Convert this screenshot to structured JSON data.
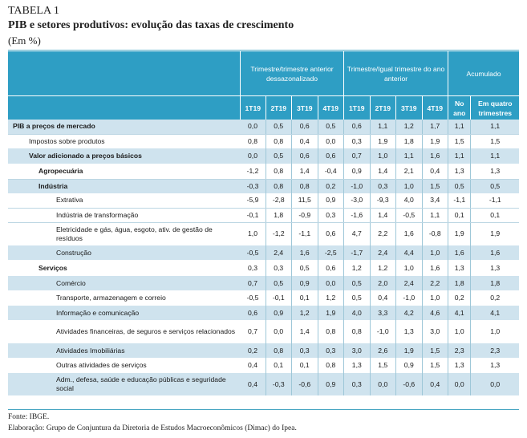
{
  "caption": {
    "label": "TABELA 1",
    "title": "PIB e setores produtivos: evolução das taxas de crescimento",
    "unit": "(Em %)"
  },
  "header": {
    "group1": "Trimestre/trimestre anterior dessazonalizado",
    "group2": "Trimestre/Igual trimestre do ano anterior",
    "group3": "Acumulado",
    "cols": [
      "1T19",
      "2T19",
      "3T19",
      "4T19",
      "1T19",
      "2T19",
      "3T19",
      "4T19",
      "No ano",
      "Em quatro trimestres"
    ]
  },
  "rows": [
    {
      "label": "PIB a preços de mercado",
      "values": [
        "0,0",
        "0,5",
        "0,6",
        "0,5",
        "0,6",
        "1,1",
        "1,2",
        "1,7",
        "1,1",
        "1,1"
      ]
    },
    {
      "label": "Impostos sobre produtos",
      "values": [
        "0,8",
        "0,8",
        "0,4",
        "0,0",
        "0,3",
        "1,9",
        "1,8",
        "1,9",
        "1,5",
        "1,5"
      ]
    },
    {
      "label": "Valor adicionado  a preços básicos",
      "values": [
        "0,0",
        "0,5",
        "0,6",
        "0,6",
        "0,7",
        "1,0",
        "1,1",
        "1,6",
        "1,1",
        "1,1"
      ]
    },
    {
      "label": "Agropecuária",
      "values": [
        "-1,2",
        "0,8",
        "1,4",
        "-0,4",
        "0,9",
        "1,4",
        "2,1",
        "0,4",
        "1,3",
        "1,3"
      ]
    },
    {
      "label": "Indústria",
      "values": [
        "-0,3",
        "0,8",
        "0,8",
        "0,2",
        "-1,0",
        "0,3",
        "1,0",
        "1,5",
        "0,5",
        "0,5"
      ]
    },
    {
      "label": "Extrativa",
      "values": [
        "-5,9",
        "-2,8",
        "11,5",
        "0,9",
        "-3,0",
        "-9,3",
        "4,0",
        "3,4",
        "-1,1",
        "-1,1"
      ]
    },
    {
      "label": "Indústria de transformação",
      "values": [
        "-0,1",
        "1,8",
        "-0,9",
        "0,3",
        "-1,6",
        "1,4",
        "-0,5",
        "1,1",
        "0,1",
        "0,1"
      ]
    },
    {
      "label": "Eletricidade e gás, água, esgoto, ativ. de gestão de resíduos",
      "values": [
        "1,0",
        "-1,2",
        "-1,1",
        "0,6",
        "4,7",
        "2,2",
        "1,6",
        "-0,8",
        "1,9",
        "1,9"
      ]
    },
    {
      "label": "Construção",
      "values": [
        "-0,5",
        "2,4",
        "1,6",
        "-2,5",
        "-1,7",
        "2,4",
        "4,4",
        "1,0",
        "1,6",
        "1,6"
      ]
    },
    {
      "label": "Serviços",
      "values": [
        "0,3",
        "0,3",
        "0,5",
        "0,6",
        "1,2",
        "1,2",
        "1,0",
        "1,6",
        "1,3",
        "1,3"
      ]
    },
    {
      "label": "Comércio",
      "values": [
        "0,7",
        "0,5",
        "0,9",
        "0,0",
        "0,5",
        "2,0",
        "2,4",
        "2,2",
        "1,8",
        "1,8"
      ]
    },
    {
      "label": "Transporte, armazenagem e correio",
      "values": [
        "-0,5",
        "-0,1",
        "0,1",
        "1,2",
        "0,5",
        "0,4",
        "-1,0",
        "1,0",
        "0,2",
        "0,2"
      ]
    },
    {
      "label": "Informação e comunicação",
      "values": [
        "0,6",
        "0,9",
        "1,2",
        "1,9",
        "4,0",
        "3,3",
        "4,2",
        "4,6",
        "4,1",
        "4,1"
      ]
    },
    {
      "label": "Atividades financeiras, de seguros e serviços relacionados",
      "values": [
        "0,7",
        "0,0",
        "1,4",
        "0,8",
        "0,8",
        "-1,0",
        "1,3",
        "3,0",
        "1,0",
        "1,0"
      ]
    },
    {
      "label": "Atividades Imobiliárias",
      "values": [
        "0,2",
        "0,8",
        "0,3",
        "0,3",
        "3,0",
        "2,6",
        "1,9",
        "1,5",
        "2,3",
        "2,3"
      ]
    },
    {
      "label": "Outras atividades de serviços",
      "values": [
        "0,4",
        "0,1",
        "0,1",
        "0,8",
        "1,3",
        "1,5",
        "0,9",
        "1,5",
        "1,3",
        "1,3"
      ]
    },
    {
      "label": "Adm., defesa, saúde e educação públicas e seguridade social",
      "values": [
        "0,4",
        "-0,3",
        "-0,6",
        "0,9",
        "0,3",
        "0,0",
        "-0,6",
        "0,4",
        "0,0",
        "0,0"
      ]
    }
  ],
  "footer": {
    "source": "Fonte: IBGE.",
    "credit": "Elaboração: Grupo de Conjuntura da Diretoria de Estudos Macroeconômicos (Dimac) do Ipea."
  },
  "colors": {
    "header_bg": "#2e9ec4",
    "row_highlight": "#cfe3ee"
  }
}
